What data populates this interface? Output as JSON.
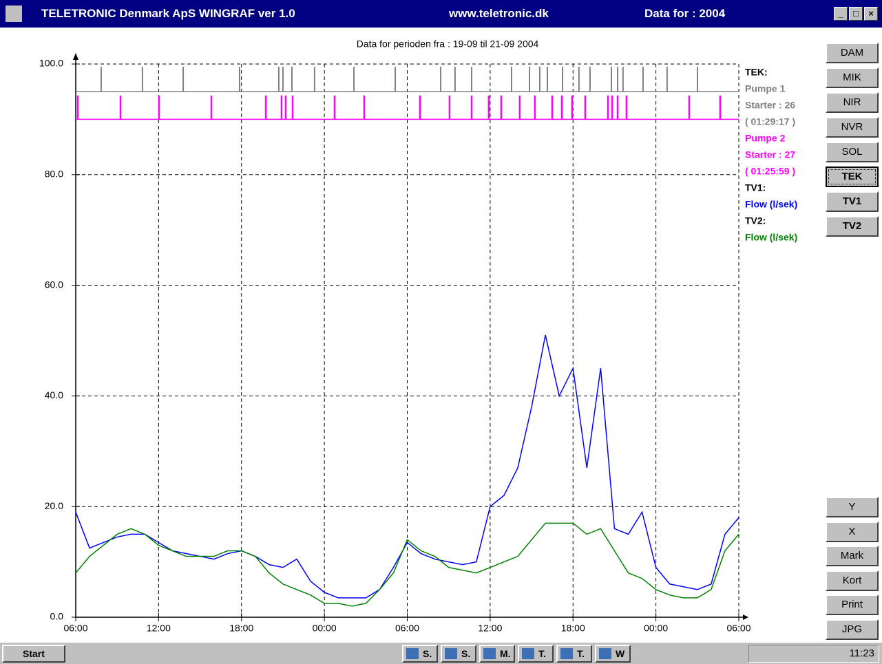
{
  "window": {
    "title": "TELETRONIC Denmark ApS WINGRAF ver 1.0",
    "url": "www.teletronic.dk",
    "year_label": "Data for : 2004"
  },
  "stations": [
    "DAM",
    "MIK",
    "NIR",
    "NVR",
    "SOL",
    "TEK",
    "TV1",
    "TV2"
  ],
  "selected_station": "TEK",
  "tools": [
    "Y",
    "X",
    "Mark",
    "Kort",
    "Print",
    "JPG"
  ],
  "taskbar": {
    "start": "Start",
    "items": [
      "S.",
      "S.",
      "M.",
      "T.",
      "T.",
      "W"
    ],
    "clock": "11:23"
  },
  "chart_data": {
    "type": "line",
    "title": "Data for perioden fra :  19-09  til  21-09 2004",
    "xlim": [
      0,
      48
    ],
    "xticks": [
      {
        "value": 0,
        "label": "06:00"
      },
      {
        "value": 6,
        "label": "12:00"
      },
      {
        "value": 12,
        "label": "18:00"
      },
      {
        "value": 18,
        "label": "00:00"
      },
      {
        "value": 24,
        "label": "06:00"
      },
      {
        "value": 30,
        "label": "12:00"
      },
      {
        "value": 36,
        "label": "18:00"
      },
      {
        "value": 42,
        "label": "00:00"
      },
      {
        "value": 48,
        "label": "06:00"
      }
    ],
    "ylim": [
      0,
      100
    ],
    "yticks": [
      {
        "value": 0,
        "label": "0.0"
      },
      {
        "value": 20,
        "label": "20.0"
      },
      {
        "value": 40,
        "label": "40.0"
      },
      {
        "value": 60,
        "label": "60.0"
      },
      {
        "value": 80,
        "label": "80.0"
      },
      {
        "value": 100,
        "label": "100.0"
      }
    ],
    "grid": true,
    "pump_header": "TEK:",
    "pumps": [
      {
        "name": "Pumpe 1",
        "starts": "Starter : 26",
        "runtime": "( 01:29:17 )",
        "color": "#808080",
        "baseline": 95,
        "top": 99.5,
        "events": [
          1.84,
          4.83,
          7.78,
          11.86,
          14.7,
          15.0,
          15.65,
          17.29,
          20.14,
          23.13,
          26.42,
          27.46,
          28.66,
          31.55,
          32.85,
          33.59,
          34.14,
          35.24,
          36.43,
          37.23,
          38.78,
          39.23,
          39.62,
          41.07,
          42.81,
          45.01
        ]
      },
      {
        "name": "Pumpe 2",
        "starts": "Starter : 27",
        "runtime": "( 01:25:59 )",
        "color": "#ff00ff",
        "baseline": 90,
        "top": 94.3,
        "events": [
          0.15,
          3.24,
          6.03,
          9.82,
          13.76,
          14.9,
          15.2,
          15.7,
          18.74,
          20.88,
          24.92,
          27.06,
          28.66,
          29.9,
          30.8,
          32.14,
          33.24,
          34.49,
          35.19,
          35.93,
          36.88,
          38.53,
          38.83,
          39.23,
          39.87,
          44.41,
          46.65
        ]
      }
    ],
    "x": [
      0,
      1,
      2,
      3,
      4,
      5,
      6,
      7,
      8,
      9,
      10,
      11,
      12,
      13,
      14,
      15,
      16,
      17,
      18,
      19,
      20,
      21,
      22,
      23,
      24,
      25,
      26,
      27,
      28,
      29,
      30,
      31,
      32,
      33,
      34,
      35,
      36,
      37,
      38,
      39,
      40,
      41,
      42,
      43,
      44,
      45,
      46,
      47,
      48
    ],
    "series": [
      {
        "station": "TV1:",
        "name": "Flow (l/sek)",
        "color": "#0000ff",
        "values": [
          19,
          12.5,
          13.5,
          14.5,
          15,
          15,
          13.5,
          12,
          11.5,
          11,
          10.5,
          11.5,
          12,
          11,
          9.5,
          9,
          10.5,
          6.5,
          4.5,
          3.5,
          3.5,
          3.5,
          5,
          9,
          13.5,
          11.5,
          10.5,
          10,
          9.5,
          10,
          20,
          22,
          27,
          38,
          51,
          40,
          45,
          27,
          45,
          16,
          15,
          19,
          9,
          6,
          5.5,
          5,
          6,
          15,
          18
        ]
      },
      {
        "station": "TV2:",
        "name": "Flow (l/sek)",
        "color": "#008000",
        "values": [
          8,
          11,
          13,
          15,
          16,
          15,
          13,
          12,
          11,
          11,
          11,
          12,
          12,
          11,
          8,
          6,
          5,
          4,
          2.5,
          2.5,
          2,
          2.5,
          5,
          8,
          14,
          12,
          11,
          9,
          8.5,
          8,
          9,
          10,
          11,
          14,
          17,
          17,
          17,
          15,
          16,
          12,
          8,
          7,
          5,
          4,
          3.5,
          3.5,
          5,
          12,
          15
        ]
      }
    ]
  }
}
